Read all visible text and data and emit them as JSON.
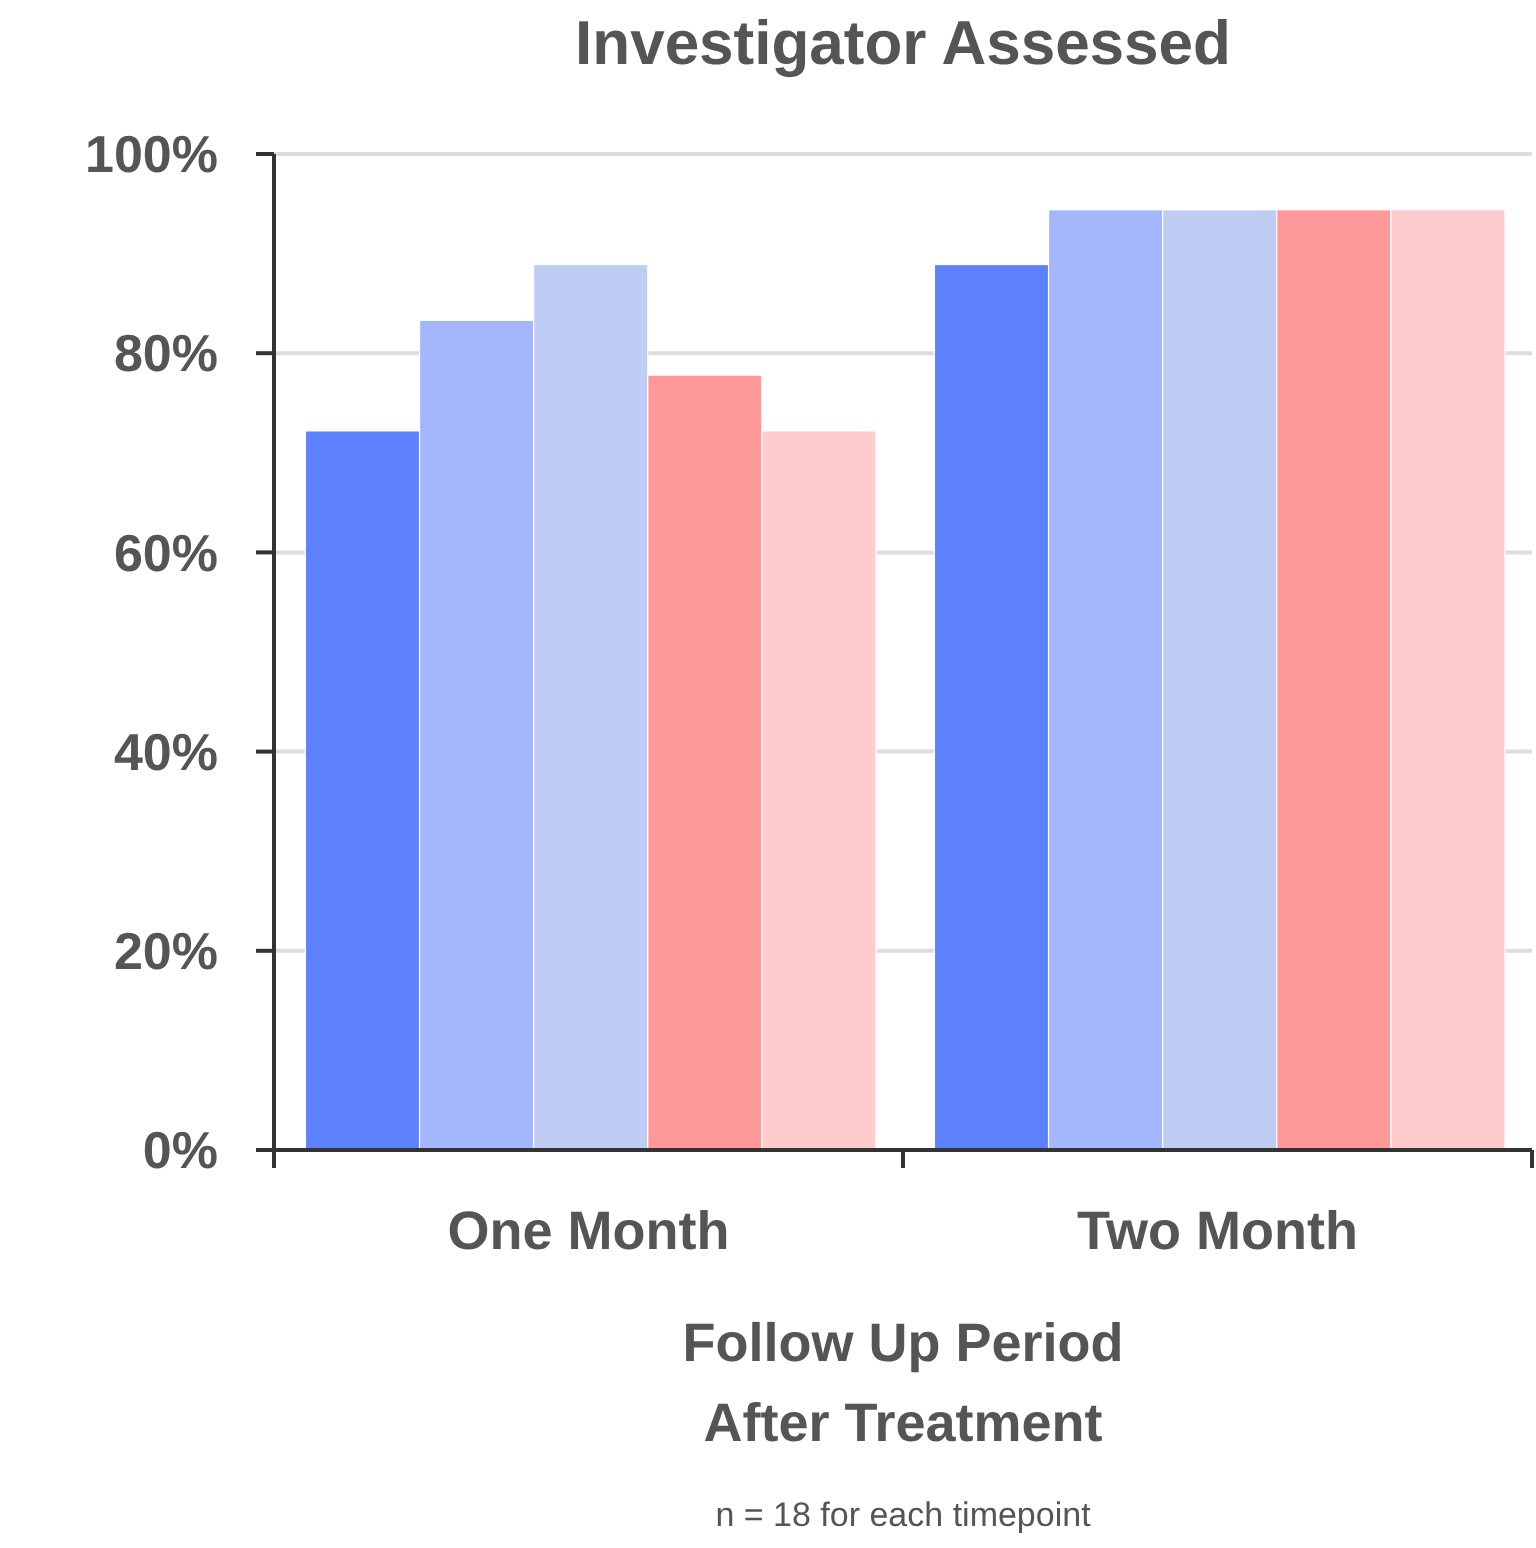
{
  "chart_data": {
    "type": "bar",
    "title": "Investigator Assessed",
    "xlabel": "Follow Up Period\nAfter Treatment",
    "annotations": [
      "n = 18 for each timepoint"
    ],
    "categories": [
      "One Month",
      "Two Month"
    ],
    "series": [
      {
        "color": "#5d80fc",
        "values": [
          72.2,
          88.9
        ]
      },
      {
        "color": "#a4b7fc",
        "values": [
          83.3,
          94.4
        ]
      },
      {
        "color": "#bfccf4",
        "values": [
          88.9,
          94.4
        ]
      },
      {
        "color": "#ff9899",
        "values": [
          77.8,
          94.4
        ]
      },
      {
        "color": "#ffcbcc",
        "values": [
          72.2,
          94.4
        ]
      }
    ],
    "ylim": [
      0,
      100
    ],
    "yticks": [
      {
        "value": 0,
        "label": "0%"
      },
      {
        "value": 20,
        "label": "20%"
      },
      {
        "value": 40,
        "label": "40%"
      },
      {
        "value": 60,
        "label": "60%"
      },
      {
        "value": 80,
        "label": "80%"
      },
      {
        "value": 100,
        "label": "100%"
      }
    ],
    "grid": "y"
  }
}
